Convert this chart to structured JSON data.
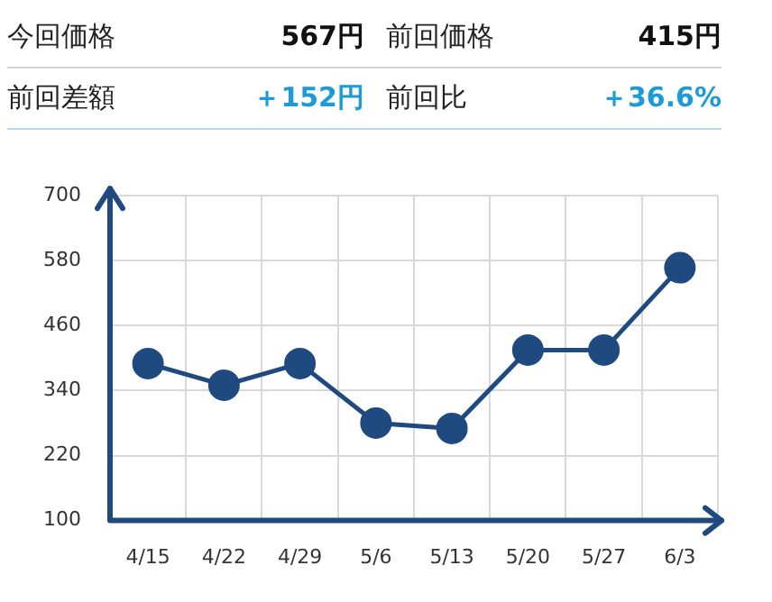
{
  "chart_data": {
    "type": "line",
    "annotations": [
      "今回価格",
      "567円",
      "前回価格",
      "415円",
      "前回差額",
      "＋152円",
      "前回比",
      "＋36.6%"
    ],
    "categories": [
      "4/15",
      "4/22",
      "4/29",
      "5/6",
      "5/13",
      "5/20",
      "5/27",
      "6/3"
    ],
    "series": [
      {
        "color": "#1f4a80",
        "values": [
          390,
          350,
          390,
          280,
          270,
          415,
          415,
          567
        ]
      }
    ],
    "ylim": [
      100,
      700
    ],
    "yticks": [
      100,
      220,
      340,
      460,
      580,
      700
    ],
    "grid": true,
    "legend": false,
    "marker": "circle",
    "line_style": "solid"
  }
}
